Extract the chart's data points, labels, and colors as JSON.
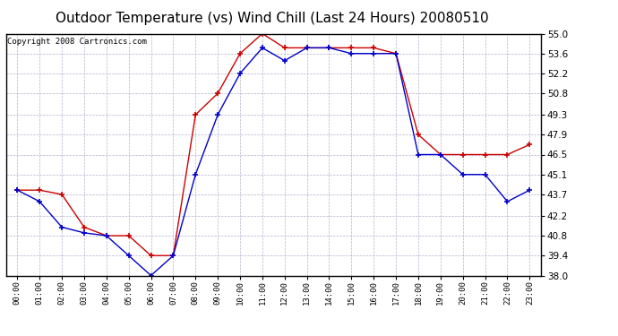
{
  "title": "Outdoor Temperature (vs) Wind Chill (Last 24 Hours) 20080510",
  "copyright": "Copyright 2008 Cartronics.com",
  "x_labels": [
    "00:00",
    "01:00",
    "02:00",
    "03:00",
    "04:00",
    "05:00",
    "06:00",
    "07:00",
    "08:00",
    "09:00",
    "10:00",
    "11:00",
    "12:00",
    "13:00",
    "14:00",
    "15:00",
    "16:00",
    "17:00",
    "18:00",
    "19:00",
    "20:00",
    "21:00",
    "22:00",
    "23:00"
  ],
  "temp_red": [
    44.0,
    44.0,
    43.7,
    41.4,
    40.8,
    40.8,
    39.4,
    39.4,
    49.3,
    50.8,
    53.6,
    55.0,
    54.0,
    54.0,
    54.0,
    54.0,
    54.0,
    53.6,
    47.9,
    46.5,
    46.5,
    46.5,
    46.5,
    47.2
  ],
  "temp_blue": [
    44.0,
    43.2,
    41.4,
    41.0,
    40.8,
    39.4,
    38.0,
    39.4,
    45.1,
    49.3,
    52.2,
    54.0,
    53.1,
    54.0,
    54.0,
    53.6,
    53.6,
    53.6,
    46.5,
    46.5,
    45.1,
    45.1,
    43.2,
    44.0
  ],
  "ylim": [
    38.0,
    55.0
  ],
  "yticks": [
    38.0,
    39.4,
    40.8,
    42.2,
    43.7,
    45.1,
    46.5,
    47.9,
    49.3,
    50.8,
    52.2,
    53.6,
    55.0
  ],
  "red_color": "#cc0000",
  "blue_color": "#0000cc",
  "bg_color": "#ffffff",
  "grid_color": "#aaaacc",
  "title_fontsize": 11,
  "copyright_fontsize": 6.5
}
